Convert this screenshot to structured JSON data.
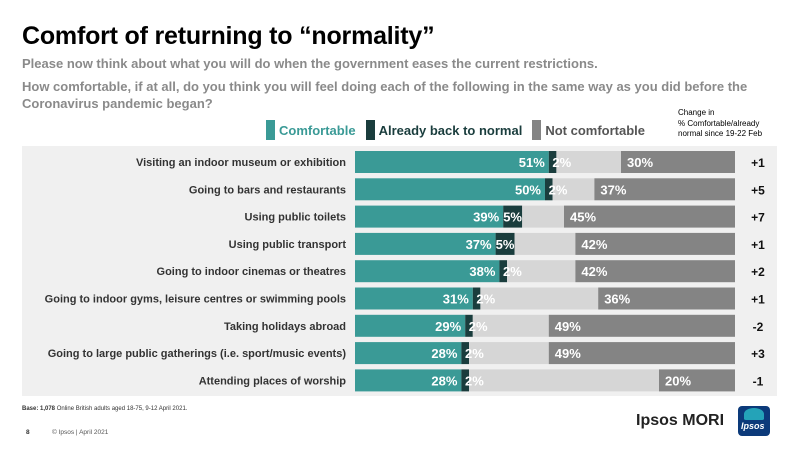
{
  "header": {
    "title": "Comfort of returning to “normality”",
    "subtitle": "Please now think about what you will do when the government eases the current restrictions.",
    "question": "How comfortable, if at all, do you think you will feel doing each of the following in the same way as you did before the Coronavirus pandemic began?"
  },
  "change_note": {
    "line1": "Change in",
    "line2": "% Comfortable/already",
    "line3": "normal since 19-22 Feb"
  },
  "colors": {
    "comfortable": "#3a9a96",
    "already": "#1a3d3d",
    "dontknow": "#d6d6d6",
    "not_comfortable": "#848484"
  },
  "chart_data": {
    "type": "bar",
    "orientation": "horizontal",
    "stacked": true,
    "categories": [
      "Visiting an indoor museum or exhibition",
      "Going to bars and restaurants",
      "Using public toilets",
      "Using public transport",
      "Going to indoor cinemas or theatres",
      "Going to indoor gyms, leisure centres or swimming pools",
      "Taking holidays abroad",
      "Going to large public gatherings (i.e. sport/music events)",
      "Attending places of worship"
    ],
    "series": [
      {
        "name": "Comfortable",
        "values": [
          51,
          50,
          39,
          37,
          38,
          31,
          29,
          28,
          28
        ],
        "labels": [
          "51%",
          "50%",
          "39%",
          "37%",
          "38%",
          "31%",
          "29%",
          "28%",
          "28%"
        ]
      },
      {
        "name": "Already back to normal",
        "values": [
          2,
          2,
          5,
          5,
          2,
          2,
          2,
          2,
          2
        ],
        "labels": [
          "2%",
          "2%",
          "5%",
          "5%",
          "2%",
          "2%",
          "2%",
          "2%",
          "2%"
        ]
      },
      {
        "name": "",
        "values": [
          17,
          11,
          11,
          16,
          18,
          31,
          20,
          21,
          50
        ]
      },
      {
        "name": "Not comfortable",
        "values": [
          30,
          37,
          45,
          42,
          42,
          36,
          49,
          49,
          20
        ],
        "labels": [
          "30%",
          "37%",
          "45%",
          "42%",
          "42%",
          "36%",
          "49%",
          "49%",
          "20%"
        ]
      }
    ],
    "changes": [
      "+1",
      "+5",
      "+7",
      "+1",
      "+2",
      "+1",
      "-2",
      "+3",
      "-1"
    ],
    "xlim": [
      0,
      100
    ]
  },
  "footer": {
    "base_label": "Base: 1,078",
    "base_text": " Online British adults aged 18-75, 9-12 April 2021.",
    "page": "8",
    "copyright": "© Ipsos | April 2021",
    "brand": "Ipsos MORI",
    "logo_text": "Ipsos"
  }
}
